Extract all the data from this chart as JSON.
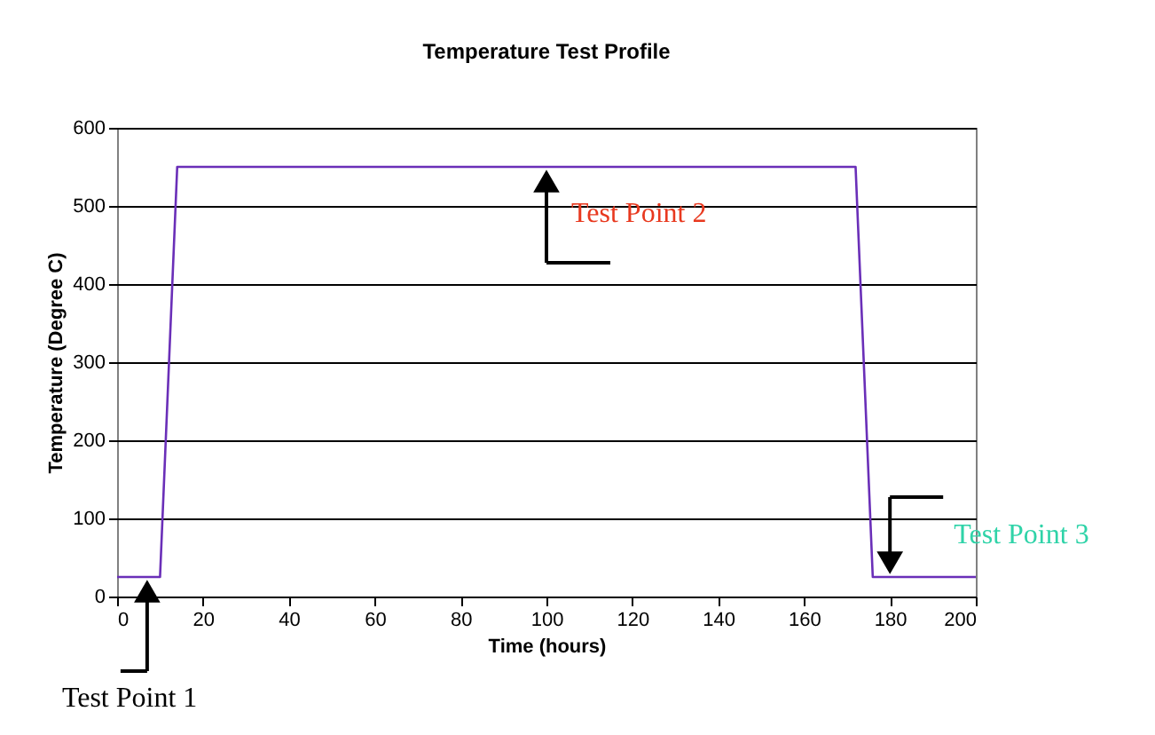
{
  "chart_data": {
    "type": "line",
    "title": "Temperature Test Profile",
    "xlabel": "Time (hours)",
    "ylabel": "Temperature (Degree C)",
    "x": [
      0,
      10,
      14,
      172,
      176,
      200
    ],
    "series": [
      {
        "color": "#6a2fb8",
        "values": [
          25,
          25,
          550,
          550,
          25,
          25
        ]
      }
    ],
    "xlim": [
      0,
      200
    ],
    "xticks": [
      0,
      20,
      40,
      60,
      80,
      100,
      120,
      140,
      160,
      180,
      200
    ],
    "ylim": [
      0,
      600
    ],
    "yticks": [
      0,
      100,
      200,
      300,
      400,
      500,
      600
    ],
    "grid": "y",
    "marker": "none",
    "line_style": "solid",
    "annotations": [
      {
        "text": "Test Point 1",
        "x": 7,
        "y": 25
      },
      {
        "text": "Test Point 2",
        "x": 100,
        "y": 550
      },
      {
        "text": "Test Point 3",
        "x": 180,
        "y": 25
      }
    ]
  }
}
